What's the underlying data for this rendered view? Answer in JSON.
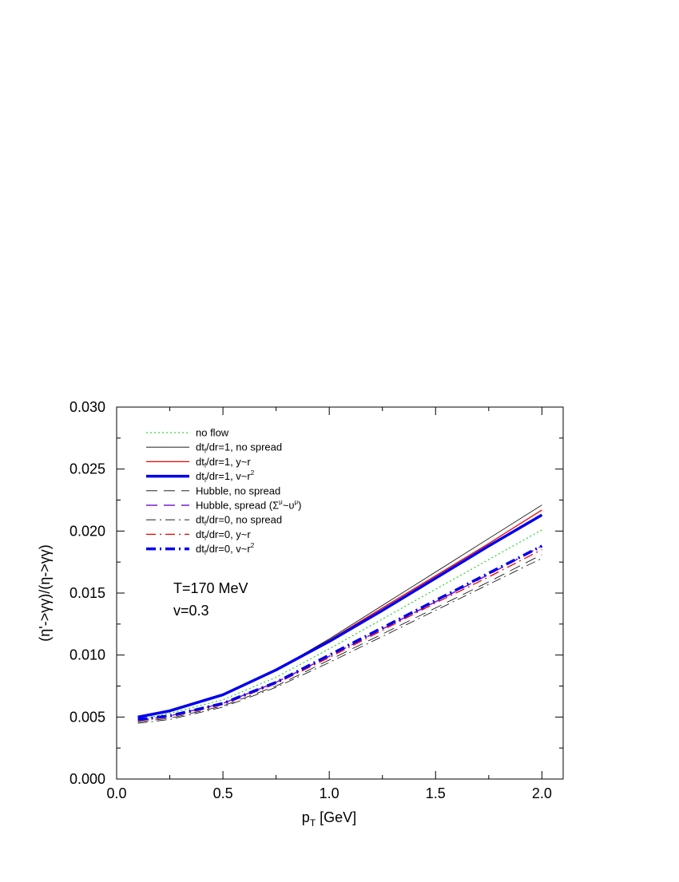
{
  "chart_data": {
    "type": "line",
    "xlabel": "p",
    "xlabel_sub": "T",
    "xlabel_unit": " [GeV]",
    "ylabel": "(η'->γγ)/(η->γγ)",
    "xlim": [
      0.0,
      2.1
    ],
    "ylim": [
      0.0,
      0.03
    ],
    "x_ticks": [
      0.0,
      0.5,
      1.0,
      1.5,
      2.0
    ],
    "x_tick_labels": [
      "0.0",
      "0.5",
      "1.0",
      "1.5",
      "2.0"
    ],
    "y_ticks": [
      0.0,
      0.005,
      0.01,
      0.015,
      0.02,
      0.025,
      0.03
    ],
    "y_tick_labels": [
      "0.000",
      "0.005",
      "0.010",
      "0.015",
      "0.020",
      "0.025",
      "0.030"
    ],
    "grid": false,
    "legend_position": "top-left",
    "annotations": [
      "T=170 MeV",
      "v=0.3"
    ],
    "x": [
      0.1,
      0.25,
      0.5,
      0.75,
      1.0,
      1.25,
      1.5,
      1.75,
      2.0
    ],
    "series": [
      {
        "name": "no flow",
        "color": "#00cc00",
        "dash": "dotted",
        "width": 1,
        "values": [
          0.0048,
          0.0053,
          0.0064,
          0.0082,
          0.0105,
          0.0129,
          0.0153,
          0.0177,
          0.0201
        ]
      },
      {
        "name": "dt/dr=1, no spread",
        "label_parts": [
          "dt",
          "f",
          "/dr=1, no spread",
          ""
        ],
        "color": "#000000",
        "dash": "solid",
        "width": 0.8,
        "values": [
          0.0049,
          0.0055,
          0.0068,
          0.0088,
          0.0113,
          0.014,
          0.0167,
          0.0194,
          0.0221
        ]
      },
      {
        "name": "dt/dr=1, y~r",
        "label_parts": [
          "dt",
          "f",
          "/dr=1, y~r",
          ""
        ],
        "color": "#ee0000",
        "dash": "solid",
        "width": 1.3,
        "values": [
          0.005,
          0.0055,
          0.0068,
          0.0088,
          0.0112,
          0.0138,
          0.0164,
          0.019,
          0.0217
        ]
      },
      {
        "name": "dt/dr=1, v~r2",
        "label_parts": [
          "dt",
          "f",
          "/dr=1, v~r",
          "2"
        ],
        "color": "#0000ee",
        "dash": "solid",
        "width": 3.5,
        "values": [
          0.005,
          0.0055,
          0.0068,
          0.0088,
          0.0111,
          0.0136,
          0.0162,
          0.0188,
          0.0213
        ]
      },
      {
        "name": "Hubble, no spread",
        "color": "#000000",
        "dash": "longdash",
        "width": 0.8,
        "values": [
          0.0046,
          0.0049,
          0.0059,
          0.0075,
          0.0096,
          0.0117,
          0.0138,
          0.0159,
          0.0181
        ]
      },
      {
        "name": "Hubble, spread (Σμ~υμ)",
        "label_parts": [
          "Hubble, spread (Σ",
          "μ",
          "~υ",
          "μ",
          ")"
        ],
        "color": "#7a1fd6",
        "dash": "longdash",
        "width": 1.6,
        "values": [
          0.0047,
          0.0051,
          0.0061,
          0.0078,
          0.0099,
          0.0121,
          0.0143,
          0.0165,
          0.0188
        ]
      },
      {
        "name": "dt/dr=0, no spread",
        "label_parts": [
          "dt",
          "f",
          "/dr=0, no spread",
          ""
        ],
        "color": "#000000",
        "dash": "dashdot",
        "width": 0.8,
        "values": [
          0.0045,
          0.0048,
          0.0058,
          0.0074,
          0.0094,
          0.0115,
          0.0136,
          0.0157,
          0.0178
        ]
      },
      {
        "name": "dt/dr=0, y~r",
        "label_parts": [
          "dt",
          "f",
          "/dr=0, y~r",
          ""
        ],
        "color": "#ee0000",
        "dash": "dashdot",
        "width": 1.3,
        "values": [
          0.0047,
          0.005,
          0.006,
          0.0077,
          0.0098,
          0.012,
          0.0142,
          0.0163,
          0.0185
        ]
      },
      {
        "name": "dt/dr=0, v~r2",
        "label_parts": [
          "dt",
          "f",
          "/dr=0, v~r",
          "2"
        ],
        "color": "#0000ee",
        "dash": "dashdot",
        "width": 3.5,
        "values": [
          0.0048,
          0.0051,
          0.0061,
          0.0078,
          0.01,
          0.0122,
          0.0144,
          0.0166,
          0.0188
        ]
      }
    ]
  }
}
